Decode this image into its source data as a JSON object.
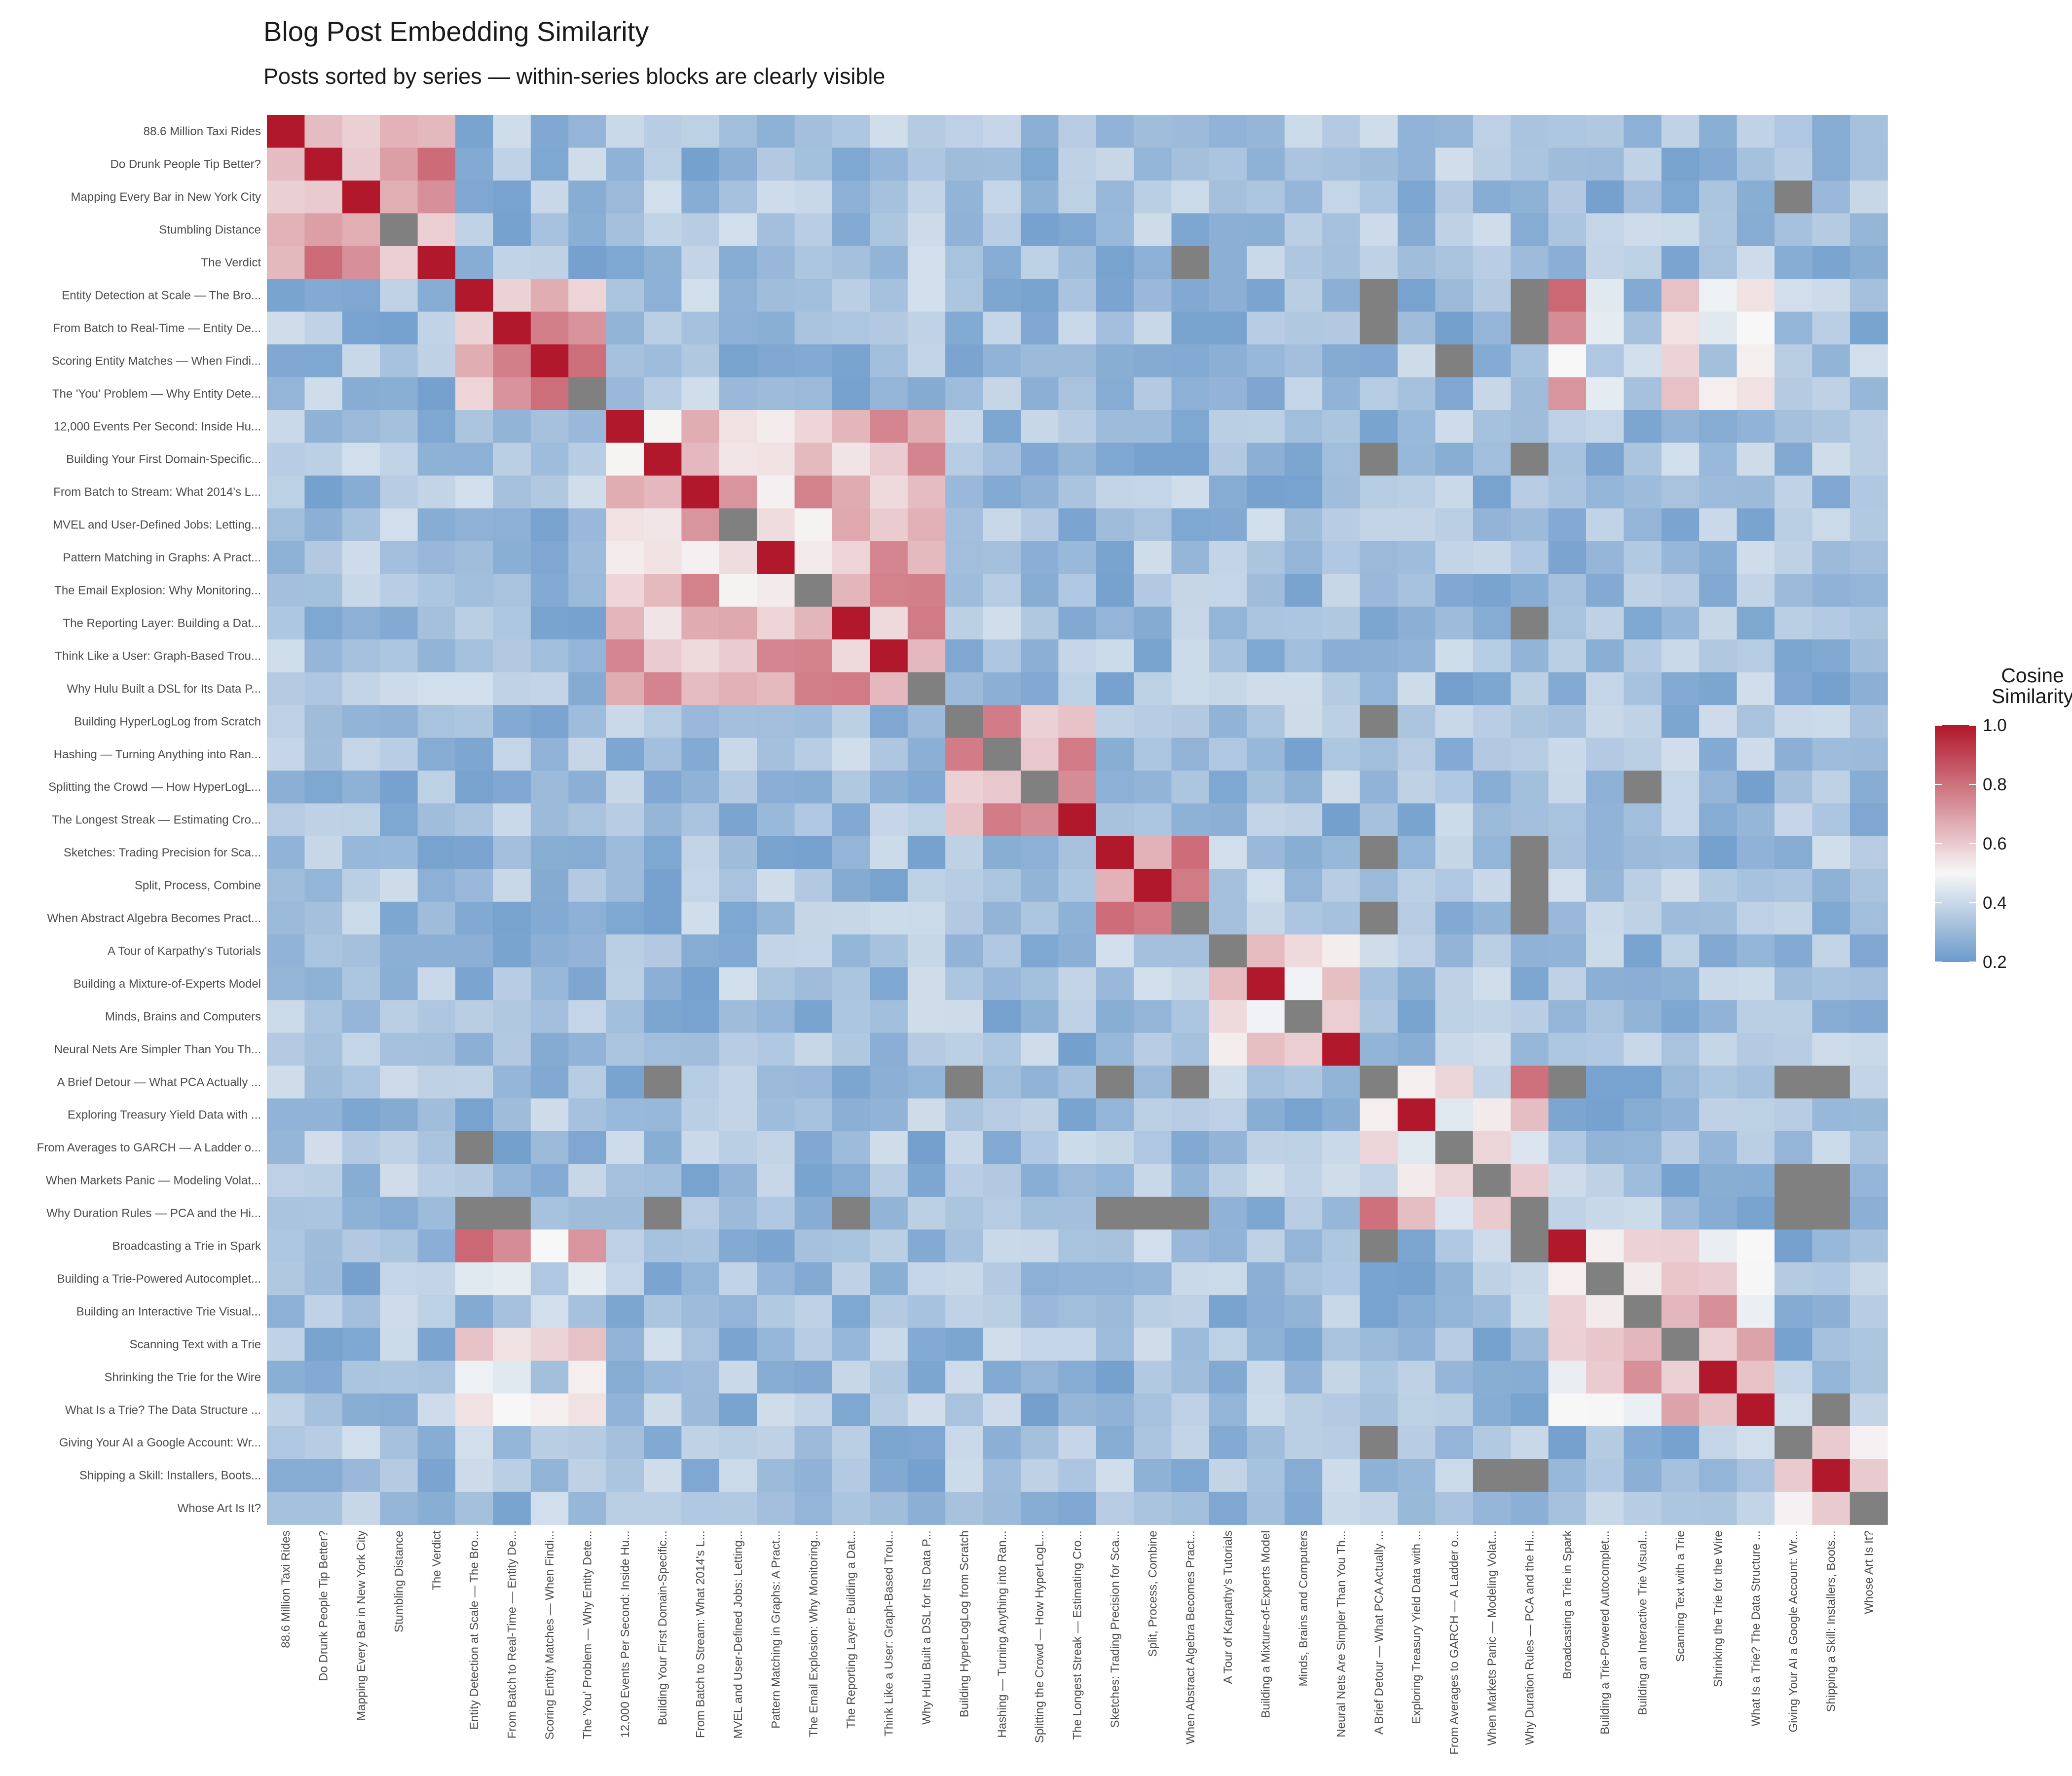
{
  "chart_data": {
    "type": "heatmap",
    "title": "Blog Post Embedding Similarity",
    "subtitle": "Posts sorted by series — within-series blocks are clearly visible",
    "labels": [
      "88.6 Million Taxi Rides",
      "Do Drunk People Tip Better?",
      "Mapping Every Bar in New York City",
      "Stumbling Distance",
      "The Verdict",
      "Entity Detection at Scale — The Bro...",
      "From Batch to Real-Time — Entity De...",
      "Scoring Entity Matches — When Findi...",
      "The 'You' Problem — Why Entity Dete...",
      "12,000 Events Per Second: Inside Hu...",
      "Building Your First Domain-Specific...",
      "From Batch to Stream: What 2014's L...",
      "MVEL and User-Defined Jobs: Letting...",
      "Pattern Matching in Graphs: A Pract...",
      "The Email Explosion: Why Monitoring...",
      "The Reporting Layer: Building a Dat...",
      "Think Like a User: Graph-Based Trou...",
      "Why Hulu Built a DSL for Its Data P...",
      "Building HyperLogLog from Scratch",
      "Hashing — Turning Anything into Ran...",
      "Splitting the Crowd — How HyperLogL...",
      "The Longest Streak — Estimating Cro...",
      "Sketches: Trading Precision for Sca...",
      "Split, Process, Combine",
      "When Abstract Algebra Becomes Pract...",
      "A Tour of Karpathy's Tutorials",
      "Building a Mixture-of-Experts Model",
      "Minds, Brains and Computers",
      "Neural Nets Are Simpler Than You Th...",
      "A Brief Detour — What PCA Actually ...",
      "Exploring Treasury Yield Data with ...",
      "From Averages to GARCH — A Ladder o...",
      "When Markets Panic — Modeling Volat...",
      "Why Duration Rules — PCA and the Hi...",
      "Broadcasting a Trie in Spark",
      "Building a Trie-Powered Autocomplet...",
      "Building an Interactive Trie Visual...",
      "Scanning Text with a Trie",
      "Shrinking the Trie for the Wire",
      "What Is a Trie? The Data Structure ...",
      "Giving Your AI a Google Account: Wr...",
      "Shipping a Skill: Installers, Boots...",
      "Whose Art Is It?"
    ],
    "groups": [
      {
        "start": 0,
        "end": 4,
        "internal": 0.72
      },
      {
        "start": 5,
        "end": 8,
        "internal": 0.7
      },
      {
        "start": 9,
        "end": 17,
        "internal": 0.64
      },
      {
        "start": 18,
        "end": 21,
        "internal": 0.7
      },
      {
        "start": 22,
        "end": 24,
        "internal": 0.72
      },
      {
        "start": 25,
        "end": 28,
        "internal": 0.58
      },
      {
        "start": 29,
        "end": 33,
        "internal": 0.52
      },
      {
        "start": 34,
        "end": 39,
        "internal": 0.6
      },
      {
        "start": 40,
        "end": 42,
        "internal": 0.55
      }
    ],
    "cross_similarity": [
      [
        5,
        34,
        0.82
      ],
      [
        6,
        34,
        0.74
      ],
      [
        7,
        34,
        0.5
      ],
      [
        8,
        34,
        0.72
      ],
      [
        5,
        37,
        0.62
      ],
      [
        6,
        37,
        0.55
      ],
      [
        7,
        37,
        0.58
      ],
      [
        8,
        37,
        0.62
      ],
      [
        5,
        38,
        0.48
      ],
      [
        6,
        38,
        0.45
      ],
      [
        8,
        38,
        0.52
      ],
      [
        5,
        39,
        0.55
      ],
      [
        6,
        39,
        0.5
      ],
      [
        7,
        39,
        0.52
      ],
      [
        8,
        39,
        0.55
      ],
      [
        5,
        35,
        0.45
      ],
      [
        6,
        35,
        0.46
      ],
      [
        8,
        35,
        0.46
      ],
      [
        29,
        33,
        0.8
      ],
      [
        40,
        41,
        0.6
      ],
      [
        36,
        20,
        0.3
      ]
    ],
    "missing_cells": [
      [
        3,
        3
      ],
      [
        8,
        8
      ],
      [
        12,
        12
      ],
      [
        14,
        14
      ],
      [
        17,
        17
      ],
      [
        18,
        18
      ],
      [
        19,
        19
      ],
      [
        20,
        20
      ],
      [
        24,
        24
      ],
      [
        25,
        25
      ],
      [
        27,
        27
      ],
      [
        29,
        29
      ],
      [
        31,
        31
      ],
      [
        32,
        32
      ],
      [
        33,
        33
      ],
      [
        35,
        35
      ],
      [
        36,
        36
      ],
      [
        37,
        37
      ],
      [
        40,
        40
      ],
      [
        42,
        42
      ],
      [
        4,
        24
      ],
      [
        2,
        40
      ],
      [
        5,
        29
      ],
      [
        7,
        31
      ],
      [
        5,
        33
      ],
      [
        6,
        29
      ],
      [
        6,
        33
      ],
      [
        10,
        29
      ],
      [
        10,
        33
      ],
      [
        15,
        33
      ],
      [
        18,
        29
      ],
      [
        22,
        29
      ],
      [
        22,
        33
      ],
      [
        23,
        33
      ],
      [
        24,
        29
      ],
      [
        24,
        33
      ],
      [
        31,
        5
      ],
      [
        33,
        5
      ],
      [
        33,
        6
      ],
      [
        33,
        10
      ],
      [
        33,
        15
      ],
      [
        33,
        22
      ],
      [
        33,
        23
      ],
      [
        33,
        24
      ],
      [
        29,
        10
      ],
      [
        29,
        18
      ],
      [
        29,
        22
      ],
      [
        29,
        24
      ],
      [
        29,
        34
      ],
      [
        29,
        40
      ],
      [
        29,
        41
      ],
      [
        34,
        33
      ],
      [
        34,
        29
      ],
      [
        41,
        32
      ],
      [
        41,
        33
      ],
      [
        40,
        29
      ],
      [
        39,
        41
      ],
      [
        32,
        41
      ],
      [
        33,
        41
      ],
      [
        20,
        36
      ],
      [
        23,
        33
      ],
      [
        32,
        40
      ],
      [
        33,
        40
      ]
    ],
    "color_scale": {
      "title_line1": "Cosine",
      "title_line2": "Similarity",
      "min": 0.2,
      "max": 1.0,
      "ticks": [
        "1.0",
        "0.8",
        "0.6",
        "0.4",
        "0.2"
      ],
      "colors": [
        "#6b9acb",
        "#f7f7f7",
        "#b2182b"
      ],
      "midpoint": 0.5,
      "missing_color": "#808080"
    }
  }
}
